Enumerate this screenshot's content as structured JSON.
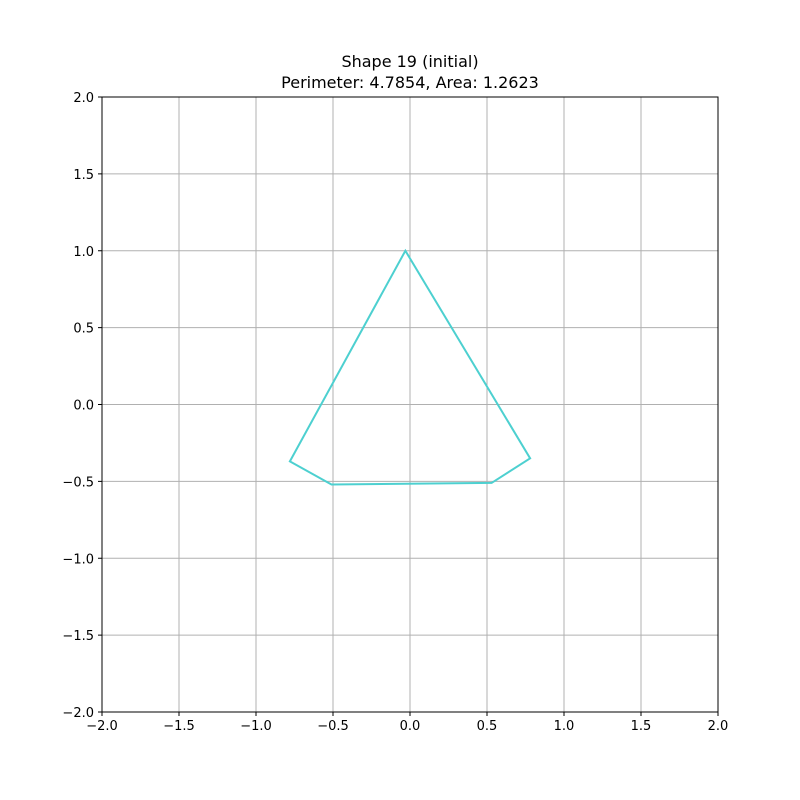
{
  "chart_data": {
    "type": "line",
    "title": "Shape 19 (initial)",
    "subtitle": "Perimeter: 4.7854, Area: 1.2623",
    "xlabel": "",
    "ylabel": "",
    "xlim": [
      -2.0,
      2.0
    ],
    "ylim": [
      -2.0,
      2.0
    ],
    "grid": true,
    "x_ticks": [
      -2.0,
      -1.5,
      -1.0,
      -0.5,
      0.0,
      0.5,
      1.0,
      1.5,
      2.0
    ],
    "y_ticks": [
      -2.0,
      -1.5,
      -1.0,
      -0.5,
      0.0,
      0.5,
      1.0,
      1.5,
      2.0
    ],
    "x_tick_labels": [
      "−2.0",
      "−1.5",
      "−1.0",
      "−0.5",
      "0.0",
      "0.5",
      "1.0",
      "1.5",
      "2.0"
    ],
    "y_tick_labels": [
      "−2.0",
      "−1.5",
      "−1.0",
      "−0.5",
      "0.0",
      "0.5",
      "1.0",
      "1.5",
      "2.0"
    ],
    "series": [
      {
        "color": "#4dd0d0",
        "closed": true,
        "x": [
          -0.03,
          0.78,
          0.53,
          -0.51,
          -0.78
        ],
        "y": [
          1.0,
          -0.35,
          -0.51,
          -0.52,
          -0.37
        ]
      }
    ]
  }
}
